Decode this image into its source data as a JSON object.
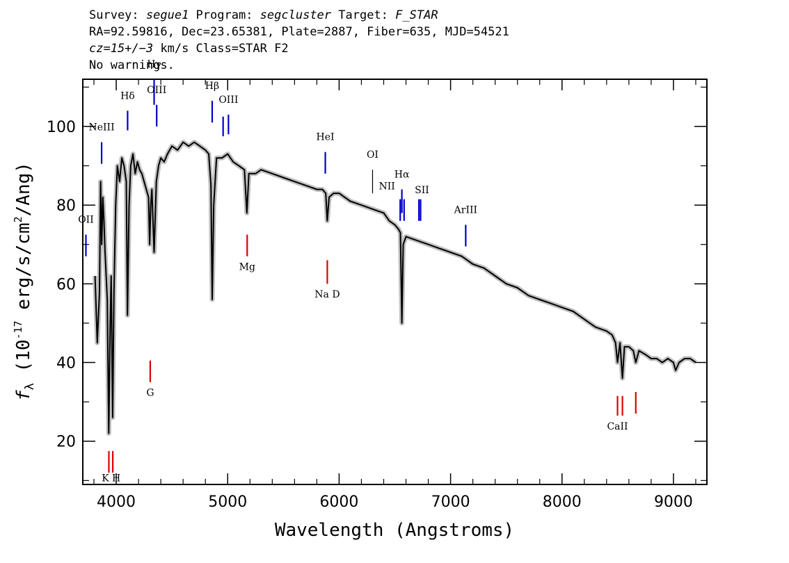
{
  "header": {
    "line1": {
      "survey_label": "Survey: ",
      "survey": "segue1",
      "program_label": " Program: ",
      "program": "segcluster",
      "target_label": " Target: ",
      "target": "F_STAR"
    },
    "line2": "RA=92.59816, Dec=23.65381, Plate=2887, Fiber=635, MJD=54521",
    "line3": {
      "cz": "cz=15+/−3",
      "rest": " km/s Class=STAR F2"
    },
    "line4": "No warnings."
  },
  "colors": {
    "spectrum": "#000000",
    "error_band": "#c0c0c0",
    "emission_line": "#0000cc",
    "absorption_line": "#dd0000",
    "sky_line": "#000000"
  },
  "chart_data": {
    "type": "line",
    "xlabel": "Wavelength (Angstroms)",
    "ylabel": {
      "f": "f",
      "sub": "λ",
      "pre": " (10",
      "exp": "-17",
      "mid": " erg/s/cm",
      "exp2": "2",
      "post": "/Ang)"
    },
    "xlim": [
      3700,
      9300
    ],
    "ylim": [
      9,
      112
    ],
    "xticks": [
      4000,
      5000,
      6000,
      7000,
      8000,
      9000
    ],
    "xtick_labels": [
      "4000",
      "5000",
      "6000",
      "7000",
      "8000",
      "9000"
    ],
    "yticks": [
      20,
      40,
      60,
      80,
      100
    ],
    "ytick_labels": [
      "20",
      "40",
      "60",
      "80",
      "100"
    ],
    "series": [
      {
        "x": [
          3810,
          3830,
          3850,
          3860,
          3870,
          3880,
          3890,
          3900,
          3920,
          3933,
          3945,
          3955,
          3968,
          3980,
          3995,
          4010,
          4030,
          4050,
          4070,
          4090,
          4101,
          4115,
          4130,
          4150,
          4170,
          4190,
          4210,
          4230,
          4250,
          4270,
          4290,
          4300,
          4310,
          4320,
          4340,
          4360,
          4380,
          4400,
          4430,
          4460,
          4500,
          4550,
          4600,
          4650,
          4700,
          4750,
          4800,
          4830,
          4850,
          4861,
          4875,
          4900,
          4950,
          5000,
          5050,
          5100,
          5150,
          5172,
          5190,
          5250,
          5300,
          5400,
          5500,
          5600,
          5700,
          5800,
          5850,
          5880,
          5893,
          5910,
          5950,
          6000,
          6100,
          6200,
          6300,
          6400,
          6450,
          6500,
          6530,
          6550,
          6563,
          6575,
          6600,
          6700,
          6800,
          6900,
          7000,
          7100,
          7200,
          7300,
          7400,
          7500,
          7600,
          7700,
          7800,
          7900,
          8000,
          8100,
          8200,
          8300,
          8400,
          8450,
          8480,
          8498,
          8520,
          8542,
          8560,
          8600,
          8640,
          8662,
          8690,
          8750,
          8800,
          8850,
          8900,
          8950,
          9000,
          9020,
          9050,
          9100,
          9150,
          9200
        ],
        "y": [
          62,
          45,
          58,
          86,
          70,
          82,
          76,
          68,
          56,
          22,
          48,
          62,
          26,
          58,
          80,
          90,
          86,
          92,
          90,
          86,
          52,
          80,
          90,
          93,
          88,
          91,
          89,
          88,
          86,
          84,
          82,
          70,
          80,
          84,
          68,
          86,
          90,
          92,
          91,
          93,
          95,
          94,
          96,
          95,
          96,
          95,
          94,
          93,
          85,
          56,
          80,
          92,
          92,
          93,
          91,
          90,
          89,
          78,
          88,
          88,
          89,
          88,
          87,
          86,
          85,
          84,
          84,
          83,
          76,
          82,
          83,
          83,
          81,
          80,
          79,
          78,
          76,
          75,
          74,
          73,
          50,
          70,
          72,
          71,
          70,
          69,
          68,
          67,
          65,
          64,
          62,
          60,
          59,
          57,
          56,
          55,
          54,
          53,
          51,
          49,
          48,
          47,
          45,
          40,
          45,
          36,
          44,
          44,
          43,
          40,
          43,
          42,
          41,
          41,
          40,
          41,
          40,
          38,
          40,
          41,
          41,
          40
        ]
      }
    ],
    "emission_lines": [
      {
        "label": "OII",
        "x": 3728,
        "y1": 67,
        "y2": 72.5,
        "label_y": 75.5
      },
      {
        "label": "NeIII",
        "x": 3869,
        "y1": 90.5,
        "y2": 96,
        "label_y": 99
      },
      {
        "label": "Hδ",
        "x": 4102,
        "y1": 99,
        "y2": 104,
        "label_y": 107
      },
      {
        "label": "Hγ",
        "x": 4340,
        "y1": 105.5,
        "y2": 112,
        "label_y": 115
      },
      {
        "label": "OIII",
        "x": 4363,
        "y1": 100,
        "y2": 105.5,
        "label_y": 108.5
      },
      {
        "label": "Hβ",
        "x": 4861,
        "y1": 101,
        "y2": 106.5,
        "label_y": 109.5
      },
      {
        "label": "OIII",
        "x": 4959,
        "y1": 97.5,
        "y2": 102.5,
        "label_y": 105.5,
        "no_label": true
      },
      {
        "label": "OIII",
        "x": 5007,
        "y1": 98,
        "y2": 103,
        "label_y": 106
      },
      {
        "label": "HeI",
        "x": 5876,
        "y1": 88,
        "y2": 93.5,
        "label_y": 96.5
      },
      {
        "label": "NII",
        "x": 6548,
        "y1": 76,
        "y2": 81.5,
        "label_y": 84,
        "label_dx": -19
      },
      {
        "label": "Hα",
        "x": 6563,
        "y1": 78,
        "y2": 84,
        "label_y": 87
      },
      {
        "label": "NII",
        "x": 6583,
        "y1": 76,
        "y2": 81.5,
        "label_y": 84,
        "no_label": true
      },
      {
        "label": "NII",
        "x": 6716,
        "y1": 76,
        "y2": 81.5,
        "label_y": 84,
        "no_label": true
      },
      {
        "label": "SII",
        "x": 6731,
        "y1": 76,
        "y2": 81.5,
        "label_y": 83,
        "label_dx": 2
      },
      {
        "label": "ArIII",
        "x": 7136,
        "y1": 69.5,
        "y2": 75,
        "label_y": 78
      }
    ],
    "sky_lines": [
      {
        "label": "OI",
        "x": 6300,
        "y1": 83,
        "y2": 89,
        "label_y": 92
      }
    ],
    "absorption_lines": [
      {
        "label": "K",
        "x": 3934,
        "y1": 12,
        "y2": 17.5,
        "label_y": 9.8,
        "label_dx": -5
      },
      {
        "label": "H",
        "x": 3969,
        "y1": 12,
        "y2": 17.5,
        "label_y": 9.8,
        "label_dx": 5
      },
      {
        "label": "G",
        "x": 4305,
        "y1": 35,
        "y2": 40.5,
        "label_y": 31.5
      },
      {
        "label": "Mg",
        "x": 5175,
        "y1": 67,
        "y2": 72.5,
        "label_y": 63.5
      },
      {
        "label": "Na D",
        "x": 5894,
        "y1": 60,
        "y2": 66,
        "label_y": 56.5
      },
      {
        "label": "CaII",
        "x": 8498,
        "y1": 26.5,
        "y2": 31.5,
        "label_y": 23,
        "label_dx": 0
      },
      {
        "label": "CaII",
        "x": 8542,
        "y1": 26.5,
        "y2": 31.5,
        "label_y": 23,
        "no_label": true
      },
      {
        "label": "CaII",
        "x": 8662,
        "y1": 27,
        "y2": 32.5,
        "label_y": 23,
        "no_label": true
      }
    ]
  }
}
